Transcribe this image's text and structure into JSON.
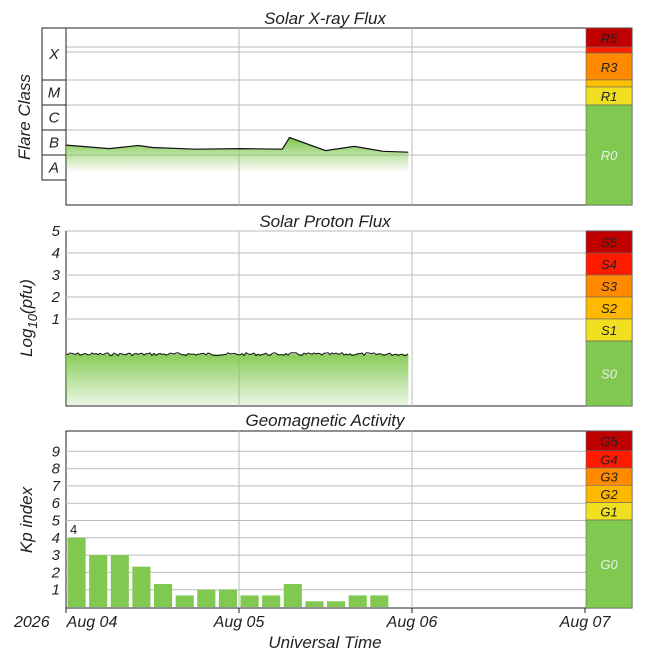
{
  "chart_data": [
    {
      "type": "line",
      "title": "Solar X-ray Flux",
      "ylabel": "Flare Class",
      "y_scale": "log",
      "class_labels": [
        "X",
        "M",
        "C",
        "B",
        "A"
      ],
      "scale_labels": [
        "R5",
        "R3",
        "R1",
        "R0"
      ],
      "scale_colors": [
        "#c00000",
        "#ff8a00",
        "#f0e020",
        "#80c850"
      ],
      "series": [
        {
          "x": [
            "2026-08-04 00:00",
            "2026-08-04 06:00",
            "2026-08-04 10:00",
            "2026-08-04 12:00",
            "2026-08-04 18:00",
            "2026-08-05 00:00",
            "2026-08-05 06:00",
            "2026-08-05 07:00",
            "2026-08-05 12:00",
            "2026-08-05 16:00",
            "2026-08-05 20:00",
            "2026-08-05 23:30"
          ],
          "values": [
            "B2.5",
            "B1.8",
            "B2.4",
            "B2.0",
            "B1.7",
            "B1.8",
            "B1.7",
            "B5.0",
            "B1.5",
            "B2.2",
            "B1.4",
            "B1.3"
          ]
        }
      ]
    },
    {
      "type": "line",
      "title": "Solar Proton Flux",
      "ylabel": "Log10(pfu)",
      "ylabel_main": "Log",
      "ylabel_sub": "10",
      "ylabel_tail": "(pfu)",
      "yticks": [
        "1",
        "2",
        "3",
        "4",
        "5"
      ],
      "scale_labels": [
        "S5",
        "S4",
        "S3",
        "S2",
        "S1",
        "S0"
      ],
      "scale_colors": [
        "#c00000",
        "#ff1a00",
        "#ff8a00",
        "#ffb800",
        "#f0e020",
        "#80c850"
      ],
      "series": [
        {
          "x": [
            "2026-08-04 00:00",
            "2026-08-05 23:30"
          ],
          "values": [
            -0.6,
            -0.6
          ]
        }
      ]
    },
    {
      "type": "bar",
      "title": "Geomagnetic Activity",
      "ylabel": "Kp index",
      "xlabel": "Universal Time",
      "yticks": [
        "1",
        "2",
        "3",
        "4",
        "5",
        "6",
        "7",
        "8",
        "9"
      ],
      "ylim": [
        0,
        10
      ],
      "scale_labels": [
        "G5",
        "G4",
        "G3",
        "G2",
        "G1",
        "G0"
      ],
      "scale_colors": [
        "#c00000",
        "#ff1a00",
        "#ff8a00",
        "#ffb800",
        "#f0e020",
        "#80c850"
      ],
      "annotation": "4",
      "x_start_label": "2026",
      "categories": [
        "Aug 04 00-03",
        "Aug 04 03-06",
        "Aug 04 06-09",
        "Aug 04 09-12",
        "Aug 04 12-15",
        "Aug 04 15-18",
        "Aug 04 18-21",
        "Aug 04 21-24",
        "Aug 05 00-03",
        "Aug 05 03-06",
        "Aug 05 06-09",
        "Aug 05 09-12",
        "Aug 05 12-15",
        "Aug 05 15-18",
        "Aug 05 18-21",
        "Aug 05 21-24"
      ],
      "values": [
        4.0,
        3.0,
        3.0,
        2.33,
        1.33,
        0.67,
        1.0,
        1.0,
        0.67,
        0.67,
        1.33,
        0.33,
        0.33,
        0.67,
        0.67,
        0
      ],
      "x_ticks": [
        "Aug 04",
        "Aug 05",
        "Aug 06",
        "Aug 07"
      ]
    }
  ]
}
